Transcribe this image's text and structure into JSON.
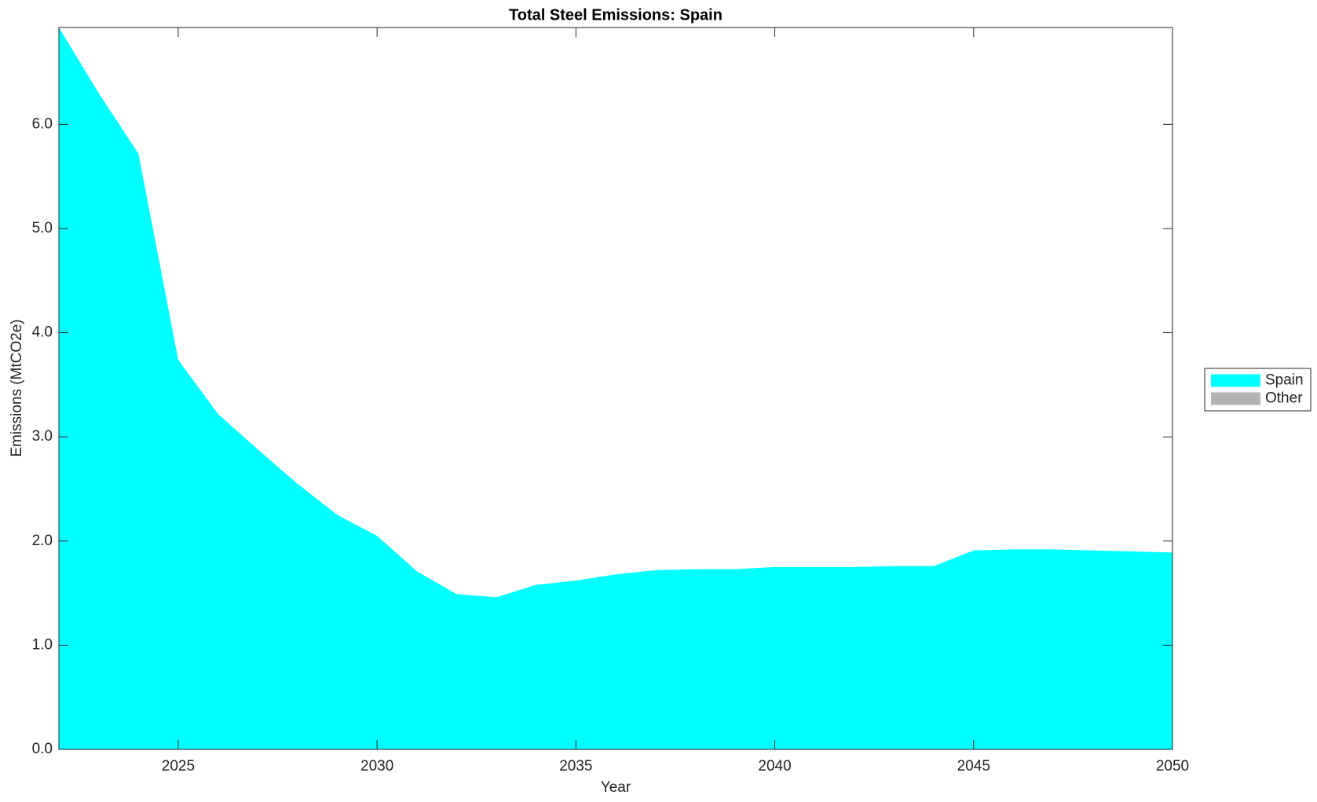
{
  "chart_data": {
    "type": "area",
    "title": "Total Steel Emissions: Spain",
    "x_label": "Year",
    "y_label": "Emissions (MtCO2e)",
    "x": [
      2022,
      2023,
      2024,
      2025,
      2026,
      2027,
      2028,
      2029,
      2030,
      2031,
      2032,
      2033,
      2034,
      2035,
      2036,
      2037,
      2038,
      2039,
      2040,
      2041,
      2042,
      2043,
      2044,
      2045,
      2046,
      2047,
      2048,
      2049,
      2050
    ],
    "series": [
      {
        "name": "Spain",
        "color": "#00ffff",
        "values": [
          6.93,
          6.3,
          5.72,
          3.74,
          3.22,
          2.88,
          2.55,
          2.25,
          2.05,
          1.71,
          1.49,
          1.46,
          1.58,
          1.62,
          1.68,
          1.72,
          1.73,
          1.73,
          1.75,
          1.75,
          1.75,
          1.76,
          1.76,
          1.91,
          1.92,
          1.92,
          1.91,
          1.9,
          1.89
        ]
      },
      {
        "name": "Other",
        "color": "#b3b3b3",
        "values": [
          0,
          0,
          0,
          0,
          0,
          0,
          0,
          0,
          0,
          0,
          0,
          0,
          0,
          0,
          0,
          0,
          0,
          0,
          0,
          0,
          0,
          0,
          0,
          0,
          0,
          0,
          0,
          0,
          0
        ]
      }
    ],
    "xlim": [
      2022,
      2050
    ],
    "xticks": [
      2025,
      2030,
      2035,
      2040,
      2045,
      2050
    ],
    "ylim": [
      0,
      6.93
    ],
    "yticks": [
      {
        "value": 0,
        "label": "0.0"
      },
      {
        "value": 1,
        "label": "1.0"
      },
      {
        "value": 2,
        "label": "2.0"
      },
      {
        "value": 3,
        "label": "3.0"
      },
      {
        "value": 4,
        "label": "4.0"
      },
      {
        "value": 5,
        "label": "5.0"
      },
      {
        "value": 6,
        "label": "6.0"
      }
    ],
    "stacked": true,
    "legend": "right"
  }
}
